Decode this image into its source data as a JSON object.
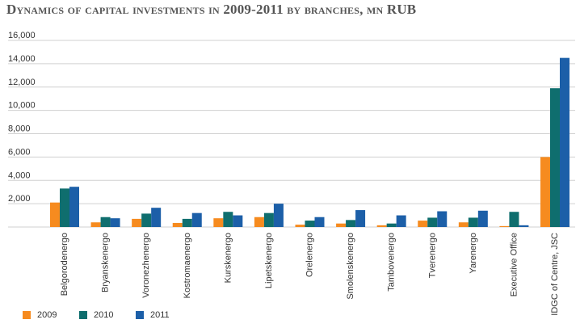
{
  "chart_data": {
    "type": "bar",
    "title": "Dynamics of capital investments in 2009-2011 by branches, mn RUB",
    "categories": [
      "Belgorodenergo",
      "Bryanskenergo",
      "Voronezhenergo",
      "Kostromaenergo",
      "Kurskenergo",
      "Lipetskenergo",
      "Orelenergo",
      "Smolenskenergo",
      "Tambovenergo",
      "Tverenergo",
      "Yarenergo",
      "Executive Office",
      "IDGC of Centre, JSC"
    ],
    "series": [
      {
        "name": "2009",
        "color": "#f68b1f",
        "values": [
          2100,
          400,
          700,
          350,
          750,
          850,
          200,
          300,
          150,
          550,
          400,
          80,
          6000
        ]
      },
      {
        "name": "2010",
        "color": "#0f6e6e",
        "values": [
          3300,
          850,
          1150,
          700,
          1300,
          1200,
          550,
          600,
          300,
          800,
          800,
          1300,
          11900
        ]
      },
      {
        "name": "2011",
        "color": "#1c5fa8",
        "values": [
          3450,
          750,
          1650,
          1200,
          1000,
          2000,
          850,
          1450,
          1000,
          1350,
          1400,
          150,
          14500
        ]
      }
    ],
    "yticks": [
      2000,
      4000,
      6000,
      8000,
      10000,
      12000,
      14000,
      16000
    ],
    "ytick_labels": [
      "2,000",
      "4,000",
      "6,000",
      "8,000",
      "10,000",
      "12,000",
      "14,000",
      "16,000"
    ],
    "ylim": [
      0,
      16000
    ],
    "grid": true,
    "legend": "bottom-left"
  }
}
